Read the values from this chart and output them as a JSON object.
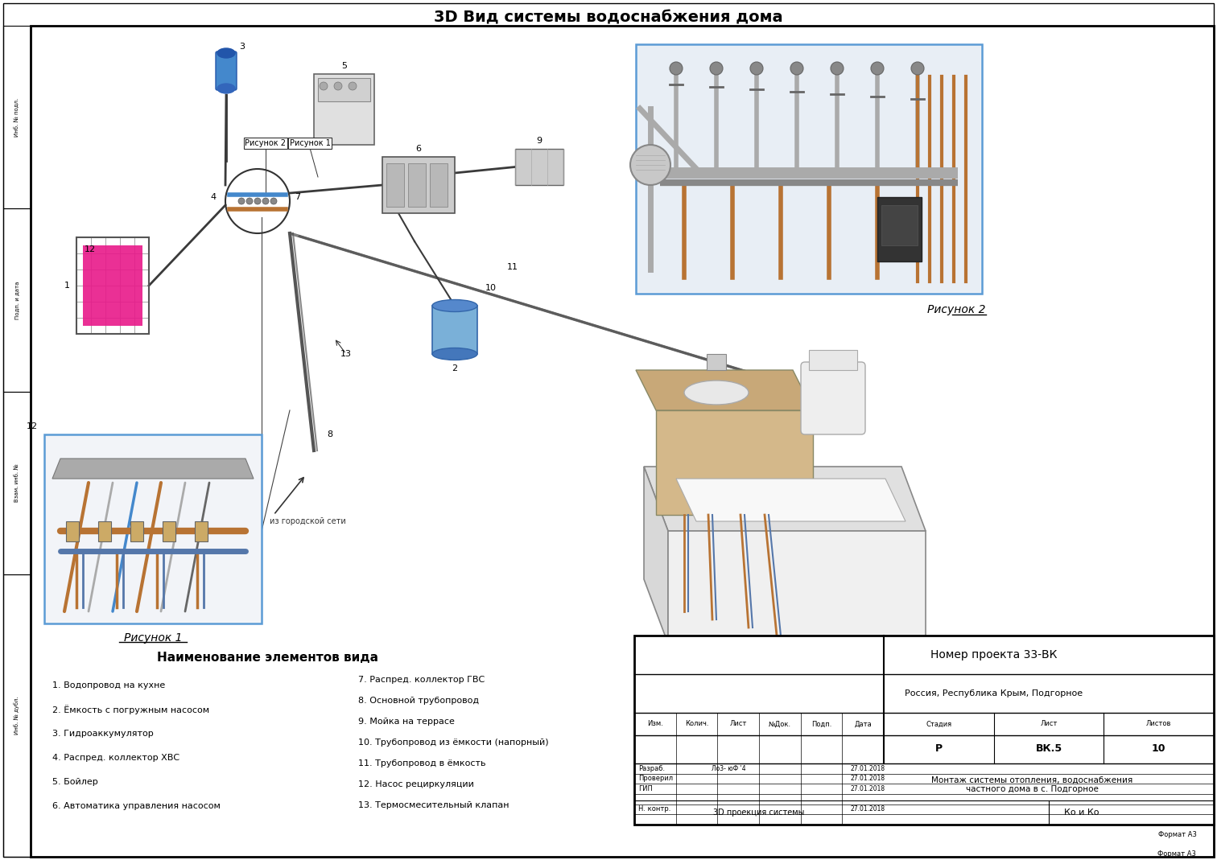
{
  "title": "3D Вид системы водоснабжения дома",
  "background_color": "#ffffff",
  "border_color": "#000000",
  "fig_width": 15.12,
  "fig_height": 10.69,
  "legend_title": "Наименование элементов вида",
  "legend_items_left": [
    "1. Водопровод на кухне",
    "2. Ёмкость с погружным насосом",
    "3. Гидроаккумулятор",
    "4. Распред. коллектор ХВС",
    "5. Бойлер",
    "6. Автоматика управления насосом"
  ],
  "legend_items_right": [
    "7. Распред. коллектор ГВС",
    "8. Основной трубопровод",
    "9. Мойка на террасе",
    "10. Трубопровод из ёмкости (напорный)",
    "11. Трубопровод в ёмкость",
    "12. Насос рециркуляции",
    "13. Термосмесительный клапан"
  ],
  "risunok1_label": "Рисунок 1",
  "risunok2_label": "Рисунок 2",
  "stamp_project_number": "Номер проекта 33-ВК",
  "stamp_location": "Россия, Республика Крым, Подгорное",
  "stamp_description_line1": "Монтаж системы отопления, водоснабжения",
  "stamp_description_line2": "частного дома в с. Подгорное",
  "stamp_stage": "Р",
  "stamp_sheet": "ВК.5",
  "stamp_sheets": "10",
  "stamp_view": "3D проекция системы",
  "stamp_org": "Ко и Ко",
  "stamp_format": "Формат А3",
  "stamp_rows": [
    {
      "label": "Разраб.",
      "name": "Ло3- юФ '4",
      "date": "27.01.2018"
    },
    {
      "label": "Проверил",
      "name": "",
      "date": "27.01.2018"
    },
    {
      "label": "ГИП",
      "name": "",
      "date": "27.01.2018"
    },
    {
      "label": "",
      "name": "",
      "date": ""
    },
    {
      "label": "Н. контр.",
      "name": "",
      "date": "27.01.2018"
    },
    {
      "label": "",
      "name": "",
      "date": ""
    }
  ],
  "stamp_col_headers": [
    "Изм.",
    "Колич.",
    "Лист",
    "№Док.",
    "Подп.",
    "Дата"
  ],
  "stamp_right_headers": [
    "Стадия",
    "Лист",
    "Листов"
  ],
  "from_city_text": "из городской сети",
  "sidebar_labels": [
    "Инб. № подл.",
    "Подп. и дата",
    "Взам. инб. №",
    "Инб. № дубл."
  ],
  "inset1_border": "#5b9bd5",
  "inset2_border": "#5b9bd5"
}
